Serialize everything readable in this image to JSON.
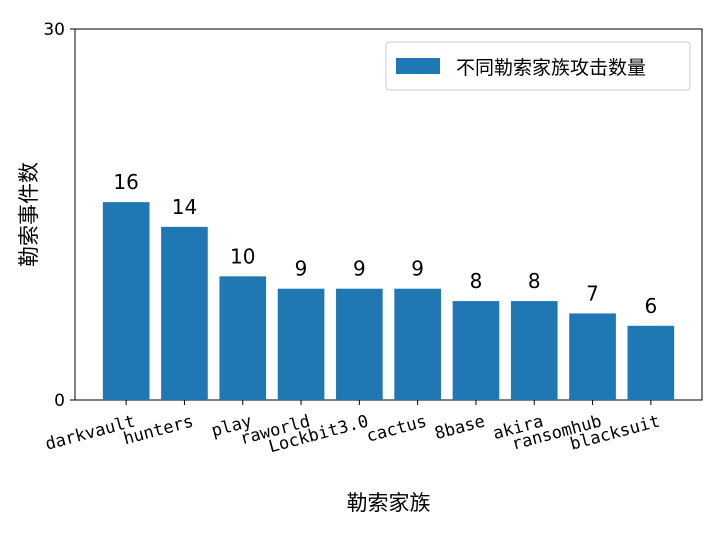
{
  "chart_data": {
    "type": "bar",
    "categories": [
      "darkvault",
      "hunters",
      "play",
      "raworld",
      "Lockbit3.0",
      "cactus",
      "8base",
      "akira",
      "ransomhub",
      "blacksuit"
    ],
    "values": [
      16,
      14,
      10,
      9,
      9,
      9,
      8,
      8,
      7,
      6
    ],
    "title": "",
    "xlabel": "勒索家族",
    "ylabel": "勒索事件数",
    "ylim": [
      0,
      30
    ],
    "yticks": [
      0,
      30
    ],
    "grid": false,
    "legend": {
      "position": "top-right",
      "entries": [
        "不同勒索家族攻击数量"
      ]
    },
    "bar_color": "#1f77b4",
    "data_labels": [
      "16",
      "14",
      "10",
      "9",
      "9",
      "9",
      "8",
      "8",
      "7",
      "6"
    ]
  }
}
